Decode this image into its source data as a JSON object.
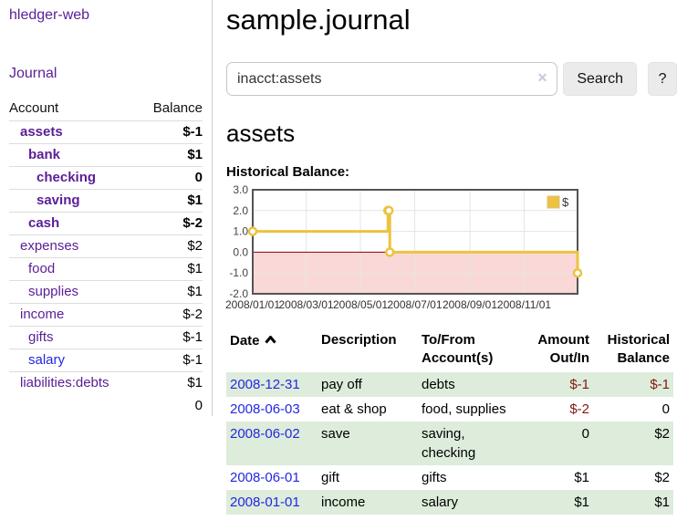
{
  "app": {
    "brand": "hledger-web"
  },
  "colors": {
    "link_purple": "#5a1e96",
    "link_blue": "#2328e0",
    "neg_strong": "#84170f",
    "neg_muted": "#c66a6c",
    "row_green": "#ddecdb",
    "chart_line": "#edc240",
    "chart_negative_fill": "#fad8d8",
    "chart_zero_line": "#8b0000",
    "chart_grid": "#e5e5e5",
    "chart_border": "#545454"
  },
  "sidebar": {
    "nav_journal": "Journal",
    "accounts": {
      "header_account": "Account",
      "header_balance": "Balance",
      "rows": [
        {
          "name": "assets",
          "balance": "$-1",
          "level": 0,
          "bold": true,
          "tone": "neg-strong"
        },
        {
          "name": "bank",
          "balance": "$1",
          "level": 1,
          "bold": true,
          "tone": null
        },
        {
          "name": "checking",
          "balance": "0",
          "level": 2,
          "bold": true,
          "tone": null
        },
        {
          "name": "saving",
          "balance": "$1",
          "level": 2,
          "bold": true,
          "tone": null
        },
        {
          "name": "cash",
          "balance": "$-2",
          "level": 1,
          "bold": true,
          "tone": "neg-strong"
        },
        {
          "name": "expenses",
          "balance": "$2",
          "level": 0,
          "bold": false,
          "tone": null
        },
        {
          "name": "food",
          "balance": "$1",
          "level": 1,
          "bold": false,
          "tone": null
        },
        {
          "name": "supplies",
          "balance": "$1",
          "level": 1,
          "bold": false,
          "tone": null
        },
        {
          "name": "income",
          "balance": "$-2",
          "level": 0,
          "bold": false,
          "tone": "neg-muted"
        },
        {
          "name": "gifts",
          "balance": "$-1",
          "level": 1,
          "bold": false,
          "tone": "neg-muted"
        },
        {
          "name": "salary",
          "balance": "$-1",
          "level": 1,
          "bold": false,
          "tone": "neg-muted",
          "link_blue": true
        },
        {
          "name": "liabilities:debts",
          "balance": "$1",
          "level": 0,
          "bold": false,
          "tone": null
        }
      ],
      "total": "0"
    }
  },
  "main": {
    "title": "sample.journal",
    "search": {
      "value": "inacct:assets",
      "clear_icon": "✕",
      "button_label": "Search",
      "help_label": "?"
    },
    "account_heading": "assets",
    "chart_label": "Historical Balance:"
  },
  "chart_data": {
    "type": "line",
    "title": "Historical Balance",
    "step": true,
    "legend": [
      {
        "label": "$",
        "color": "#edc240"
      }
    ],
    "legend_position": "top-right",
    "grid": true,
    "ylim": [
      -2,
      3
    ],
    "y_ticks": [
      "3.0",
      "2.0",
      "1.0",
      "0.0",
      "-1.0",
      "-2.0"
    ],
    "x_ticks": [
      "2008/01/01",
      "2008/03/01",
      "2008/05/01",
      "2008/07/01",
      "2008/09/01",
      "2008/11/01"
    ],
    "x_range": [
      "2008-01-01",
      "2008-12-31"
    ],
    "points": [
      [
        "2008-01-01",
        1
      ],
      [
        "2008-06-01",
        2
      ],
      [
        "2008-06-02",
        2
      ],
      [
        "2008-06-03",
        0
      ],
      [
        "2008-12-31",
        -1
      ]
    ],
    "negative_region_shaded": true
  },
  "transactions": {
    "headers": {
      "date": "Date",
      "description": "Description",
      "accounts": "To/From Account(s)",
      "amount": "Amount Out/In",
      "balance": "Historical Balance"
    },
    "rows": [
      {
        "date": "2008-12-31",
        "description": "pay off",
        "accounts": "debts",
        "amount": "$-1",
        "balance": "$-1"
      },
      {
        "date": "2008-06-03",
        "description": "eat & shop",
        "accounts": "food, supplies",
        "amount": "$-2",
        "balance": "0"
      },
      {
        "date": "2008-06-02",
        "description": "save",
        "accounts": "saving, checking",
        "amount": "0",
        "balance": "$2"
      },
      {
        "date": "2008-06-01",
        "description": "gift",
        "accounts": "gifts",
        "amount": "$1",
        "balance": "$2"
      },
      {
        "date": "2008-01-01",
        "description": "income",
        "accounts": "salary",
        "amount": "$1",
        "balance": "$1"
      }
    ]
  }
}
